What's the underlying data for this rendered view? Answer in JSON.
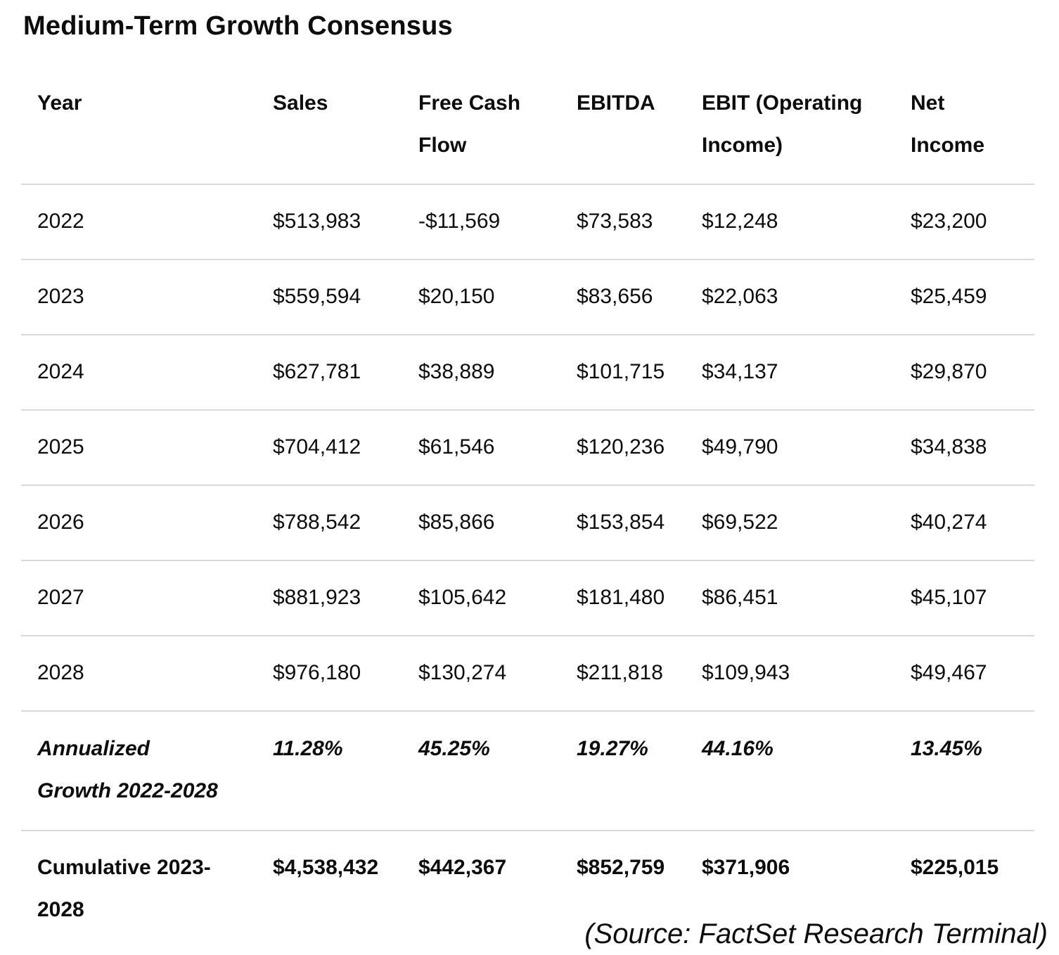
{
  "title": "Medium-Term Growth Consensus",
  "source_note": "(Source: FactSet Research Terminal)",
  "colors": {
    "text": "#0d0d0d",
    "divider": "#d9d9d9",
    "background": "#ffffff"
  },
  "table": {
    "header": [
      {
        "line1": "Year",
        "line2": ""
      },
      {
        "line1": "Sales",
        "line2": ""
      },
      {
        "line1": "Free Cash",
        "line2": "Flow"
      },
      {
        "line1": "EBITDA",
        "line2": ""
      },
      {
        "line1": "EBIT (Operating",
        "line2": "Income)"
      },
      {
        "line1": "Net",
        "line2": "Income"
      }
    ],
    "rows": [
      {
        "label1": "2022",
        "label2": "",
        "values": [
          "$513,983",
          "-$11,569",
          "$73,583",
          "$12,248",
          "$23,200"
        ]
      },
      {
        "label1": "2023",
        "label2": "",
        "values": [
          "$559,594",
          "$20,150",
          "$83,656",
          "$22,063",
          "$25,459"
        ]
      },
      {
        "label1": "2024",
        "label2": "",
        "values": [
          "$627,781",
          "$38,889",
          "$101,715",
          "$34,137",
          "$29,870"
        ]
      },
      {
        "label1": "2025",
        "label2": "",
        "values": [
          "$704,412",
          "$61,546",
          "$120,236",
          "$49,790",
          "$34,838"
        ]
      },
      {
        "label1": "2026",
        "label2": "",
        "values": [
          "$788,542",
          "$85,866",
          "$153,854",
          "$69,522",
          "$40,274"
        ]
      },
      {
        "label1": "2027",
        "label2": "",
        "values": [
          "$881,923",
          "$105,642",
          "$181,480",
          "$86,451",
          "$45,107"
        ]
      },
      {
        "label1": "2028",
        "label2": "",
        "values": [
          "$976,180",
          "$130,274",
          "$211,818",
          "$109,943",
          "$49,467"
        ]
      },
      {
        "label1": "Annualized",
        "label2": "Growth 2022-2028",
        "values": [
          "11.28%",
          "45.25%",
          "19.27%",
          "44.16%",
          "13.45%"
        ]
      },
      {
        "label1": "Cumulative 2023-",
        "label2": "2028",
        "values": [
          "$4,538,432",
          "$442,367",
          "$852,759",
          "$371,906",
          "$225,015"
        ]
      }
    ]
  },
  "chart_data": {
    "type": "table",
    "title": "Medium-Term Growth Consensus",
    "columns": [
      "Year",
      "Sales",
      "Free Cash Flow",
      "EBITDA",
      "EBIT (Operating Income)",
      "Net Income"
    ],
    "rows": [
      [
        "2022",
        "$513,983",
        "-$11,569",
        "$73,583",
        "$12,248",
        "$23,200"
      ],
      [
        "2023",
        "$559,594",
        "$20,150",
        "$83,656",
        "$22,063",
        "$25,459"
      ],
      [
        "2024",
        "$627,781",
        "$38,889",
        "$101,715",
        "$34,137",
        "$29,870"
      ],
      [
        "2025",
        "$704,412",
        "$61,546",
        "$120,236",
        "$49,790",
        "$34,838"
      ],
      [
        "2026",
        "$788,542",
        "$85,866",
        "$153,854",
        "$69,522",
        "$40,274"
      ],
      [
        "2027",
        "$881,923",
        "$105,642",
        "$181,480",
        "$86,451",
        "$45,107"
      ],
      [
        "2028",
        "$976,180",
        "$130,274",
        "$211,818",
        "$109,943",
        "$49,467"
      ],
      [
        "Annualized Growth 2022-2028",
        "11.28%",
        "45.25%",
        "19.27%",
        "44.16%",
        "13.45%"
      ],
      [
        "Cumulative 2023-2028",
        "$4,538,432",
        "$442,367",
        "$852,759",
        "$371,906",
        "$225,015"
      ]
    ],
    "source": "(Source: FactSet Research Terminal)"
  }
}
